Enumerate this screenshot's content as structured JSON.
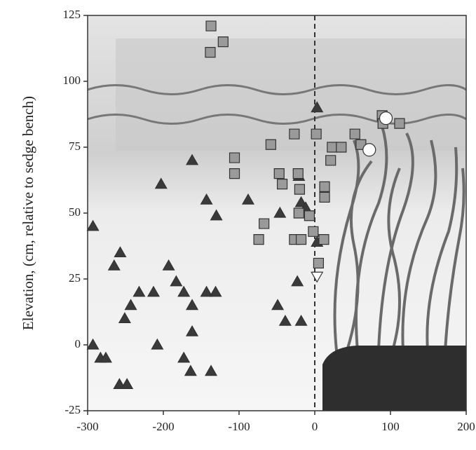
{
  "chart_data": {
    "type": "scatter",
    "y_label": "Elevation, (cm, relative to sedge bench)",
    "xlim": [
      -300,
      200
    ],
    "xticks": [
      -300,
      -200,
      -100,
      0,
      100,
      200
    ],
    "ylim": [
      -25,
      125
    ],
    "yticks": [
      -25,
      0,
      25,
      50,
      75,
      100,
      125
    ],
    "series": [
      {
        "marker": "triangle",
        "color": "#3a3a3a",
        "x": [
          -293,
          -293,
          -283,
          -276,
          -258,
          -248,
          -265,
          -257,
          -251,
          -243,
          -232,
          -213,
          -208,
          -203,
          -193,
          -183,
          -173,
          -173,
          -162,
          -162,
          -164,
          -162,
          -143,
          -131,
          -143,
          -130,
          -137,
          -88,
          -46,
          -49,
          -39,
          -21,
          -23,
          -18,
          -18,
          -12,
          3,
          3
        ],
        "values": [
          45,
          0,
          -5,
          -5,
          -15,
          -15,
          30,
          35,
          10,
          15,
          20,
          20,
          0,
          61,
          30,
          24,
          20,
          -5,
          15,
          5,
          -10,
          70,
          20,
          20,
          55,
          49,
          -10,
          55,
          50,
          15,
          9,
          64,
          24,
          9,
          54,
          52,
          90,
          39
        ]
      },
      {
        "marker": "square",
        "color": "#9a9a9a",
        "x": [
          -137,
          -121,
          -138,
          -106,
          -106,
          -58,
          -47,
          -43,
          -67,
          -74,
          -27,
          -22,
          -20,
          -21,
          -27,
          -18,
          -7,
          2,
          -2,
          5,
          12,
          13,
          13,
          21,
          23,
          35,
          53,
          61,
          89,
          90,
          112
        ],
        "values": [
          121,
          115,
          111,
          71,
          65,
          76,
          65,
          61,
          46,
          40,
          80,
          65,
          59,
          50,
          40,
          40,
          49,
          80,
          43,
          31,
          40,
          60,
          56,
          70,
          75,
          75,
          80,
          76,
          87,
          84,
          84
        ]
      },
      {
        "marker": "circle",
        "color": "#ffffff",
        "x": [
          94,
          72
        ],
        "values": [
          86,
          74
        ]
      },
      {
        "marker": "triangle-down",
        "color": "#ffffff",
        "x": [
          3
        ],
        "values": [
          26
        ]
      }
    ]
  }
}
